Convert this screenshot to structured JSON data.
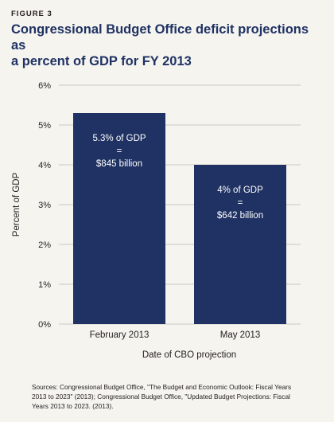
{
  "figure_label": "FIGURE 3",
  "title_line1": "Congressional Budget Office deficit projections as",
  "title_line2": "a percent of GDP for FY 2013",
  "sources_line1": "Sources: Congressional Budget Office, \"The Budget and Economic Outlook: Fiscal Years",
  "sources_line2": "2013 to 2023\" (2013); Congressional Budget Office, \"Updated Budget Projections: Fiscal",
  "sources_line3": "Years 2013 to 2023. (2013).",
  "colors": {
    "bar": "#1f3263",
    "grid": "#c9c8c3",
    "title": "#1f3263",
    "bar_text": "#ffffff"
  },
  "chart_data": {
    "type": "bar",
    "categories": [
      "February 2013",
      "May 2013"
    ],
    "values": [
      5.3,
      4.0
    ],
    "bar_labels": [
      [
        "5.3% of GDP",
        "=",
        "$845 billion"
      ],
      [
        "4% of GDP",
        "=",
        "$642 billion"
      ]
    ],
    "xlabel": "Date of CBO projection",
    "ylabel": "Percent of GDP",
    "ylim": [
      0,
      6
    ],
    "yticks": [
      0,
      1,
      2,
      3,
      4,
      5,
      6
    ],
    "ytick_labels": [
      "0%",
      "1%",
      "2%",
      "3%",
      "4%",
      "5%",
      "6%"
    ],
    "grid": true
  }
}
